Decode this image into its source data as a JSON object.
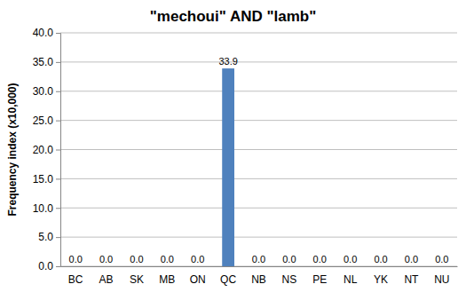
{
  "chart_data": {
    "type": "bar",
    "title": "\"mechoui\" AND \"lamb\"",
    "y_label": "Frequency index (x10,000)",
    "categories": [
      "BC",
      "AB",
      "SK",
      "MB",
      "ON",
      "QC",
      "NB",
      "NS",
      "PE",
      "NL",
      "YK",
      "NT",
      "NU"
    ],
    "values": [
      0,
      0,
      0,
      0,
      0,
      33.9,
      0,
      0,
      0,
      0,
      0,
      0,
      0
    ],
    "value_labels": [
      "0.0",
      "0.0",
      "0.0",
      "0.0",
      "0.0",
      "33.9",
      "0.0",
      "0.0",
      "0.0",
      "0.0",
      "0.0",
      "0.0",
      "0.0"
    ],
    "data_labels": true,
    "color": "#4f81bd",
    "ylim": [
      0,
      40
    ],
    "yticks": [
      {
        "value": 0,
        "label": "0.0"
      },
      {
        "value": 5,
        "label": "5.0"
      },
      {
        "value": 10,
        "label": "10.0"
      },
      {
        "value": 15,
        "label": "15.0"
      },
      {
        "value": 20,
        "label": "20.0"
      },
      {
        "value": 25,
        "label": "25.0"
      },
      {
        "value": 30,
        "label": "30.0"
      },
      {
        "value": 35,
        "label": "35.0"
      },
      {
        "value": 40,
        "label": "40.0"
      }
    ],
    "grid": true
  }
}
